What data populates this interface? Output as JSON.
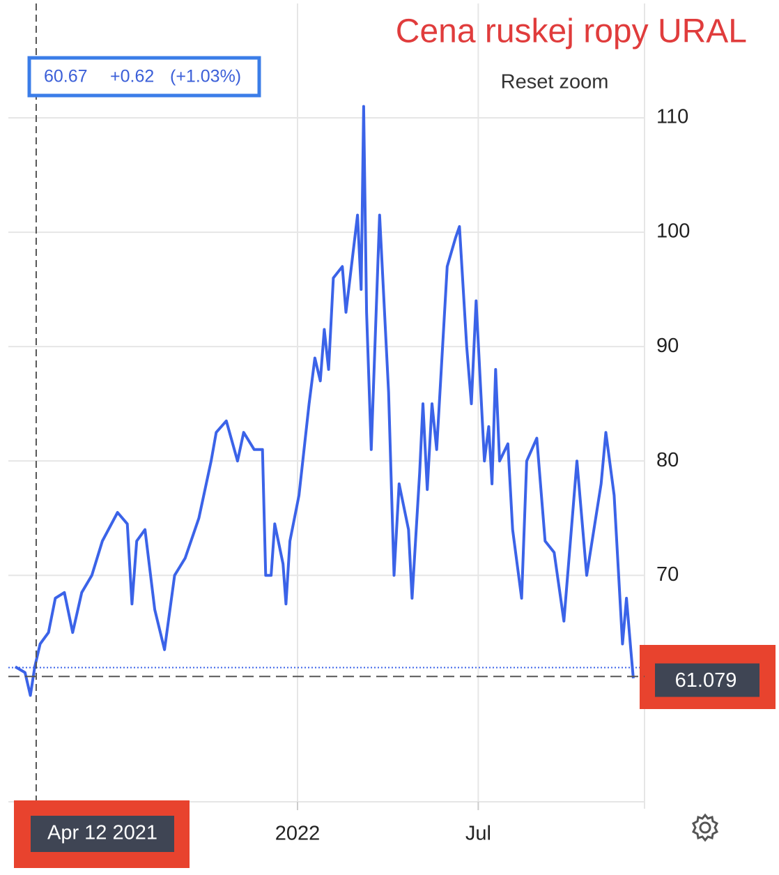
{
  "chart_data": {
    "type": "line",
    "annotation": "Cena ruskej ropy URAL",
    "reset_button": "Reset zoom",
    "tooltip": {
      "value": 60.67,
      "change": "+0.62",
      "change_pct": "(+1.03%)"
    },
    "crosshair": {
      "x": 2021.277,
      "label": "Apr 12 2021"
    },
    "last_price": 61.079,
    "xlim": [
      2021.2,
      2022.96
    ],
    "ylim": [
      50.2,
      120
    ],
    "xticks": [
      {
        "value": 2022,
        "label": "2022"
      },
      {
        "value": 2022.5,
        "label": "Jul"
      }
    ],
    "yticks": [
      70,
      80,
      90,
      100,
      110
    ],
    "grid": true,
    "series": [
      {
        "color": "#3b63e8",
        "x": [
          2021.219,
          2021.246,
          2021.261,
          2021.273,
          2021.288,
          2021.311,
          2021.33,
          2021.355,
          2021.378,
          2021.403,
          2021.431,
          2021.46,
          2021.502,
          2021.529,
          2021.542,
          2021.555,
          2021.578,
          2021.605,
          2021.632,
          2021.66,
          2021.689,
          2021.727,
          2021.761,
          2021.775,
          2021.803,
          2021.834,
          2021.851,
          2021.88,
          2021.903,
          2021.912,
          2021.927,
          2021.937,
          2021.96,
          2021.968,
          2021.979,
          2022.004,
          2022.032,
          2022.048,
          2022.063,
          2022.074,
          2022.086,
          2022.099,
          2022.124,
          2022.134,
          2022.166,
          2022.176,
          2022.183,
          2022.191,
          2022.204,
          2022.227,
          2022.252,
          2022.267,
          2022.281,
          2022.307,
          2022.317,
          2022.338,
          2022.347,
          2022.359,
          2022.372,
          2022.385,
          2022.414,
          2022.437,
          2022.448,
          2022.468,
          2022.481,
          2022.494,
          2022.517,
          2022.529,
          2022.538,
          2022.548,
          2022.559,
          2022.582,
          2022.595,
          2022.62,
          2022.634,
          2022.662,
          2022.685,
          2022.71,
          2022.737,
          2022.773,
          2022.8,
          2022.84,
          2022.853,
          2022.876,
          2022.899,
          2022.91,
          2022.922,
          2022.929
        ],
        "values": [
          62,
          61.5,
          59.5,
          62,
          64,
          65,
          68,
          68.5,
          65,
          68.5,
          70,
          73,
          75.5,
          74.5,
          67.5,
          73,
          74,
          67,
          63.5,
          70,
          71.5,
          75,
          80,
          82.5,
          83.5,
          80,
          82.5,
          81,
          81,
          70,
          70,
          74.5,
          71,
          67.5,
          73,
          77,
          85,
          89,
          87,
          91.5,
          88,
          96,
          97,
          93,
          101.5,
          95,
          111,
          93,
          81,
          101.5,
          86,
          70,
          78,
          74,
          68,
          79,
          85,
          77.5,
          85,
          81,
          97,
          99.5,
          100.5,
          90,
          85,
          94,
          80,
          83,
          78,
          88,
          80,
          81.5,
          74,
          68,
          80,
          82,
          73,
          72,
          66,
          80,
          70,
          78,
          82.5,
          77,
          64,
          68,
          63.5,
          61
        ]
      }
    ]
  }
}
